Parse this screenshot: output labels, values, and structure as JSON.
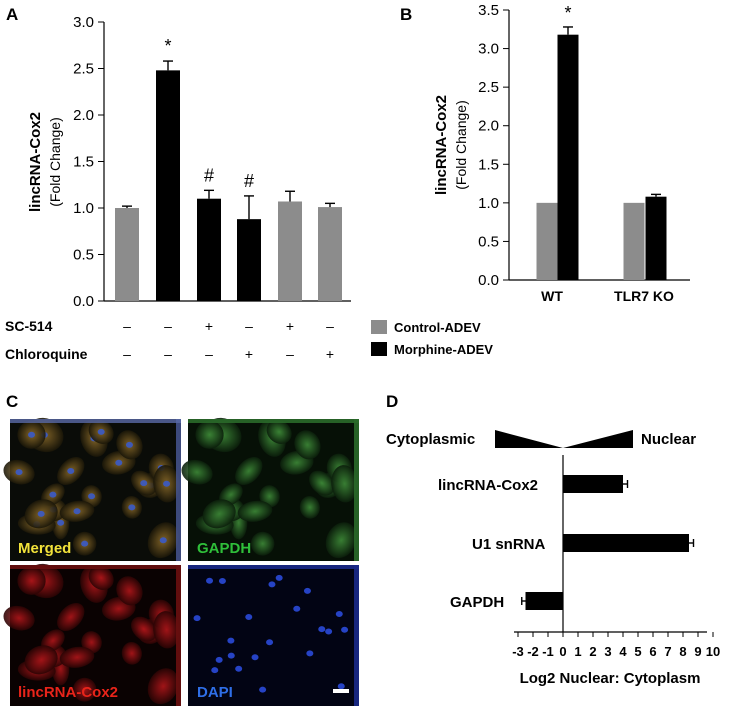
{
  "panels": {
    "A": {
      "letter": "A"
    },
    "B": {
      "letter": "B"
    },
    "C": {
      "letter": "C"
    },
    "D": {
      "letter": "D"
    }
  },
  "colors": {
    "control": "#8c8c8c",
    "morphine": "#000000"
  },
  "legend": {
    "items": [
      {
        "label": "Control-ADEV",
        "color": "#8c8c8c"
      },
      {
        "label": "Morphine-ADEV",
        "color": "#000000"
      }
    ]
  },
  "conditions": {
    "rows": [
      {
        "label": "SC-514",
        "signs": [
          "–",
          "–",
          "+",
          "–",
          "+",
          "–"
        ]
      },
      {
        "label": "Chloroquine",
        "signs": [
          "–",
          "–",
          "–",
          "+",
          "–",
          "+"
        ]
      }
    ]
  },
  "microscopy": {
    "tiles": [
      {
        "label": "Merged",
        "label_color": "#f2e23a"
      },
      {
        "label": "GAPDH",
        "label_color": "#2fbf3a"
      },
      {
        "label": "lincRNA-Cox2",
        "label_color": "#e8241a"
      },
      {
        "label": "DAPI",
        "label_color": "#2f6fe8"
      }
    ]
  },
  "chart_data": [
    {
      "panel": "A",
      "type": "bar",
      "ylabel": "lincRNA-Cox2",
      "ylabel_sub": "(Fold Change)",
      "ylim": [
        0,
        3.0
      ],
      "yticks": [
        "0.0",
        "0.5",
        "1.0",
        "1.5",
        "2.0",
        "2.5",
        "3.0"
      ],
      "bars": [
        {
          "value": 1.0,
          "error": 0.02,
          "group": "control",
          "sig": ""
        },
        {
          "value": 2.48,
          "error": 0.1,
          "group": "morphine",
          "sig": "*"
        },
        {
          "value": 1.1,
          "error": 0.09,
          "group": "morphine",
          "sig": "#"
        },
        {
          "value": 0.88,
          "error": 0.25,
          "group": "morphine",
          "sig": "#"
        },
        {
          "value": 1.07,
          "error": 0.11,
          "group": "control",
          "sig": ""
        },
        {
          "value": 1.01,
          "error": 0.04,
          "group": "control",
          "sig": ""
        }
      ]
    },
    {
      "panel": "B",
      "type": "bar",
      "ylabel": "lincRNA-Cox2",
      "ylabel_sub": "(Fold Change)",
      "ylim": [
        0,
        3.5
      ],
      "yticks": [
        "0.0",
        "0.5",
        "1.0",
        "1.5",
        "2.0",
        "2.5",
        "3.0",
        "3.5"
      ],
      "categories": [
        "WT",
        "TLR7 KO"
      ],
      "series": [
        {
          "name": "Control-ADEV",
          "values": [
            1.0,
            1.0
          ],
          "errors": [
            0,
            0
          ],
          "sig": [
            "",
            ""
          ]
        },
        {
          "name": "Morphine-ADEV",
          "values": [
            3.18,
            1.08
          ],
          "errors": [
            0.1,
            0.03
          ],
          "sig": [
            "*",
            ""
          ]
        }
      ]
    },
    {
      "panel": "D",
      "type": "bar",
      "orientation": "horizontal",
      "xlabel": "Log2 Nuclear: Cytoplasm",
      "left_label": "Cytoplasmic",
      "right_label": "Nuclear",
      "xlim": [
        -3,
        10
      ],
      "xticks": [
        "-3",
        "-2",
        "-1",
        "0",
        "1",
        "2",
        "3",
        "4",
        "5",
        "6",
        "7",
        "8",
        "9",
        "10"
      ],
      "categories": [
        "lincRNA-Cox2",
        "U1 snRNA",
        "GAPDH"
      ],
      "values": [
        4.0,
        8.4,
        -2.5
      ],
      "errors": [
        0.3,
        0.3,
        0.25
      ]
    }
  ]
}
